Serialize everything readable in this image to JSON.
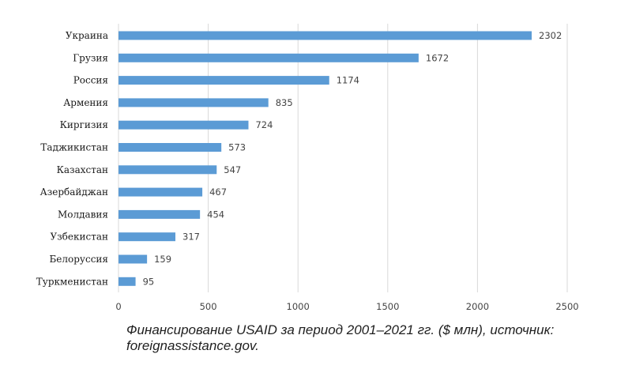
{
  "chart_data": {
    "type": "bar",
    "orientation": "horizontal",
    "categories": [
      "Украина",
      "Грузия",
      "Россия",
      "Армения",
      "Киргизия",
      "Таджикистан",
      "Казахстан",
      "Азербайджан",
      "Молдавия",
      "Узбекистан",
      "Белоруссия",
      "Туркменистан"
    ],
    "values": [
      2302,
      1672,
      1174,
      835,
      724,
      573,
      547,
      467,
      454,
      317,
      159,
      95
    ],
    "xlim": [
      0,
      2500
    ],
    "xticks": [
      0,
      500,
      1000,
      1500,
      2000,
      2500
    ],
    "grid": "vertical",
    "legend": "none",
    "bar_color": "#5b9bd5"
  },
  "caption": {
    "line1": "Финансирование USAID за период 2001–2021 гг. ($ млн), источник:",
    "line2": "foreignassistance.gov."
  }
}
